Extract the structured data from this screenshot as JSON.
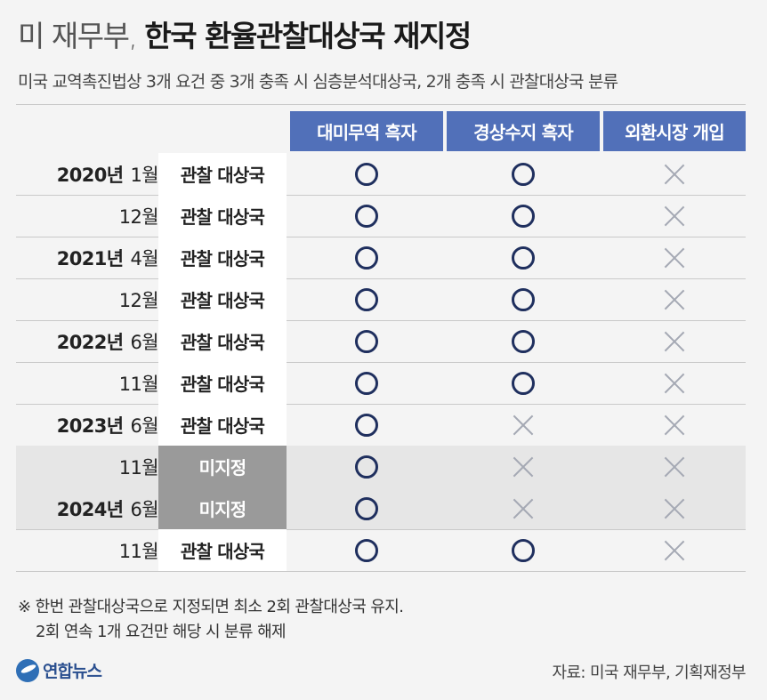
{
  "title": {
    "prefix": "미 재무부,",
    "main": "한국 환율관찰대상국 재지정"
  },
  "subtitle": "미국 교역촉진법상 3개 요건 중 3개 충족 시 심층분석대상국, 2개 충족 시 관찰대상국 분류",
  "columns": [
    "대미무역 흑자",
    "경상수지 흑자",
    "외환시장 개입"
  ],
  "rows": [
    {
      "year": "2020년",
      "month": "1월",
      "status": "관찰 대상국",
      "marks": [
        "O",
        "O",
        "X"
      ]
    },
    {
      "year": "",
      "month": "12월",
      "status": "관찰 대상국",
      "marks": [
        "O",
        "O",
        "X"
      ]
    },
    {
      "year": "2021년",
      "month": "4월",
      "status": "관찰 대상국",
      "marks": [
        "O",
        "O",
        "X"
      ]
    },
    {
      "year": "",
      "month": "12월",
      "status": "관찰 대상국",
      "marks": [
        "O",
        "O",
        "X"
      ]
    },
    {
      "year": "2022년",
      "month": "6월",
      "status": "관찰 대상국",
      "marks": [
        "O",
        "O",
        "X"
      ]
    },
    {
      "year": "",
      "month": "11월",
      "status": "관찰 대상국",
      "marks": [
        "O",
        "O",
        "X"
      ]
    },
    {
      "year": "2023년",
      "month": "6월",
      "status": "관찰 대상국",
      "marks": [
        "O",
        "X",
        "X"
      ]
    },
    {
      "year": "",
      "month": "11월",
      "status": "미지정",
      "marks": [
        "O",
        "X",
        "X"
      ]
    },
    {
      "year": "2024년",
      "month": "6월",
      "status": "미지정",
      "marks": [
        "O",
        "X",
        "X"
      ]
    },
    {
      "year": "",
      "month": "11월",
      "status": "관찰 대상국",
      "marks": [
        "O",
        "O",
        "X"
      ]
    }
  ],
  "notes": [
    "※ 한번 관찰대상국으로 지정되면 최소 2회 관찰대상국 유지.",
    "2회 연속 1개 요건만 해당 시 분류 해제"
  ],
  "logo": "연합뉴스",
  "source": "자료: 미국 재무부, 기획재정부",
  "colors": {
    "header_bg": "#5170b9",
    "circle": "#1f2f5e",
    "cross": "#a5a9b4",
    "undesignated_bg": "#9a9a9a",
    "shaded_row": "#e6e6e6"
  },
  "icons": {
    "O": "circle-icon",
    "X": "cross-icon"
  }
}
